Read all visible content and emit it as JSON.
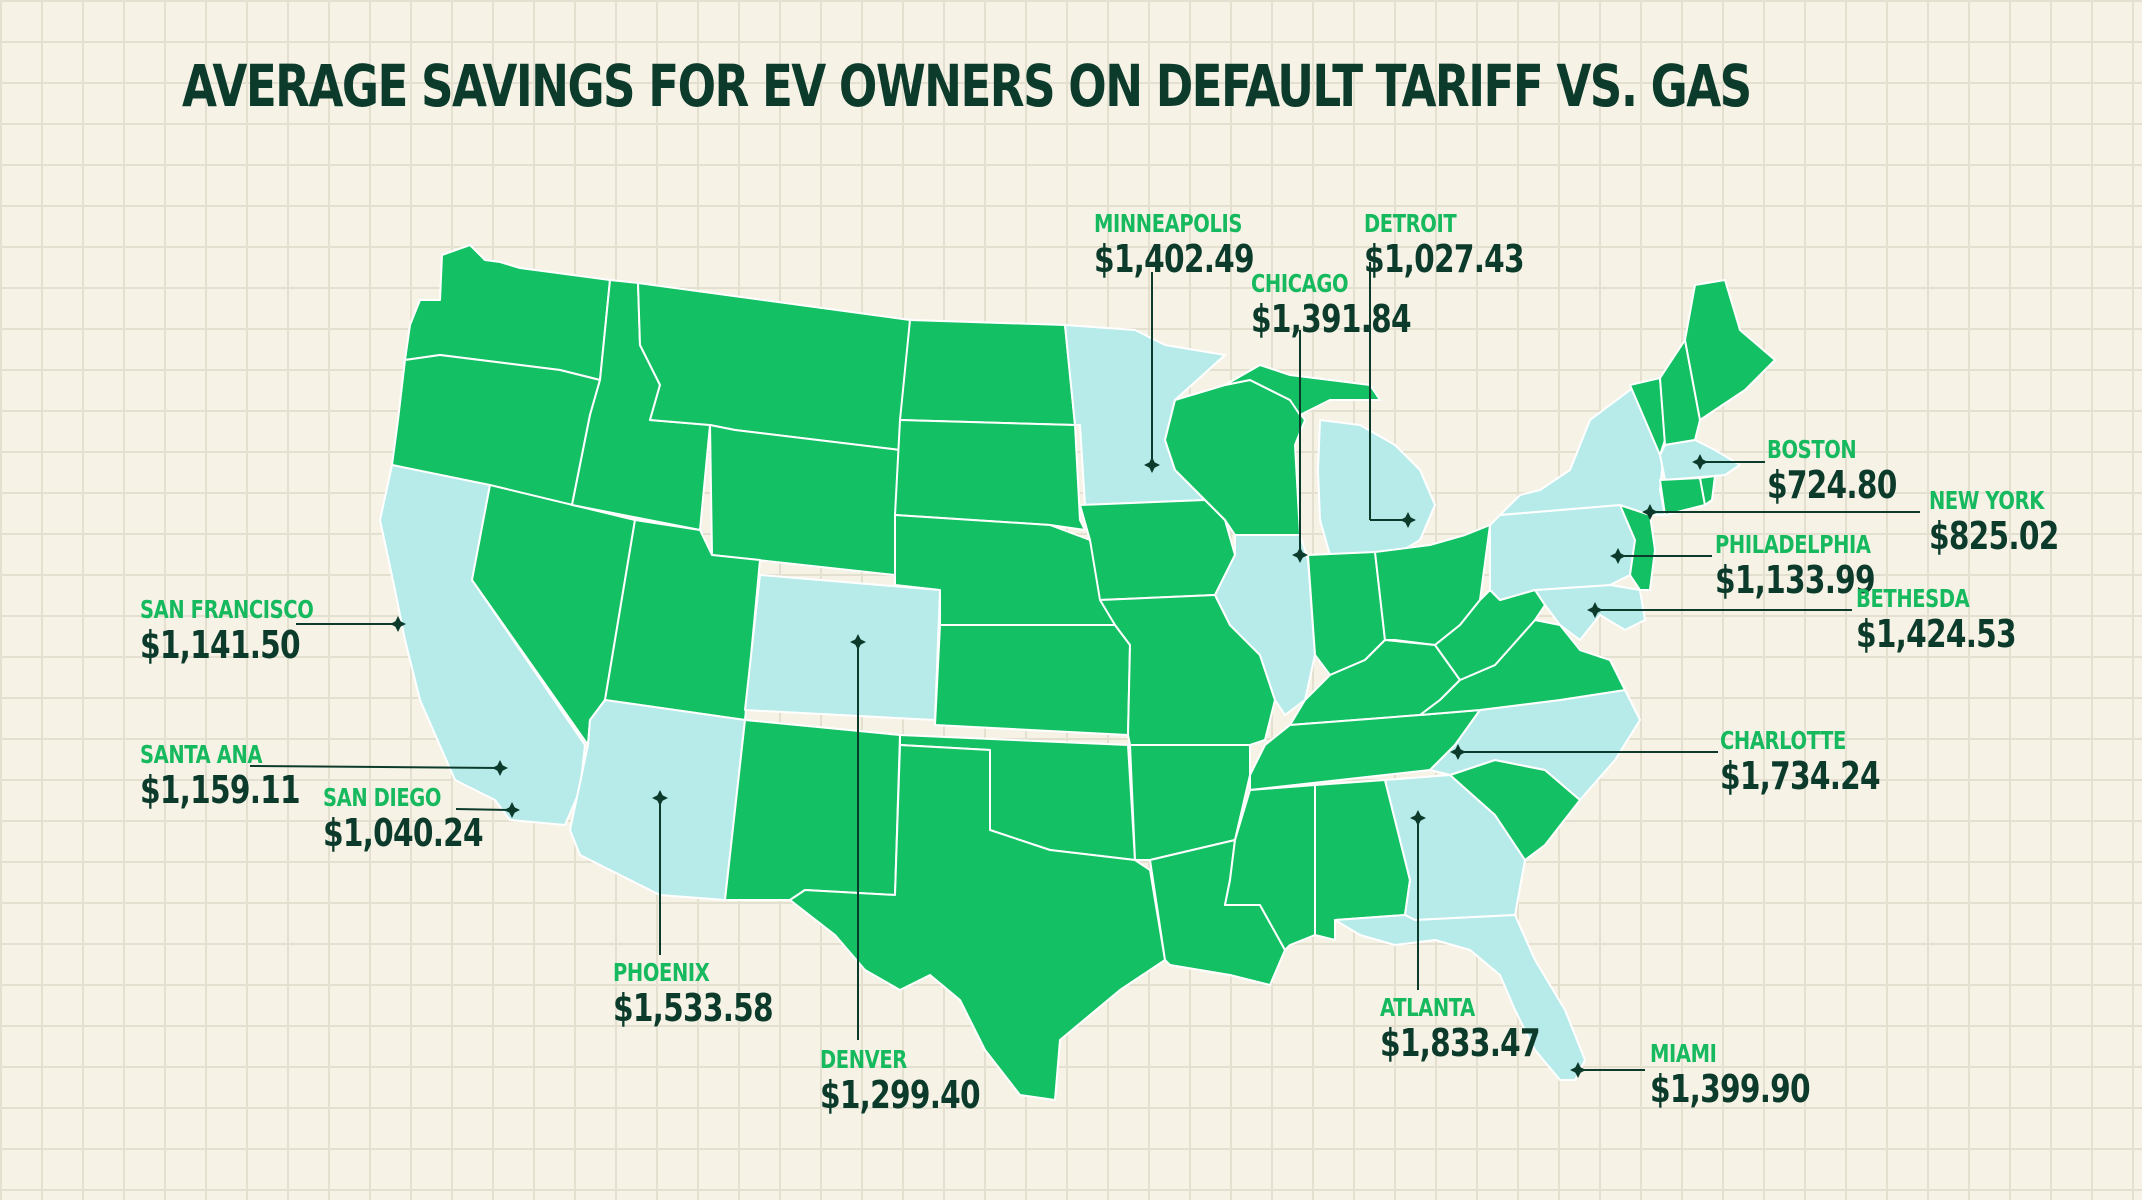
{
  "title": "AVERAGE SAVINGS FOR EV OWNERS ON DEFAULT TARIFF VS. GAS",
  "colors": {
    "background": "#f6f3e6",
    "grid": "#e4e0d0",
    "state_default": "#14c064",
    "state_highlighted": "#b6ebea",
    "city_text": "#16b95e",
    "amount_text": "#0c3b2c"
  },
  "cities": [
    {
      "id": "minneapolis",
      "name": "MINNEAPOLIS",
      "amount": "$1,402.49"
    },
    {
      "id": "detroit",
      "name": "DETROIT",
      "amount": "$1,027.43"
    },
    {
      "id": "chicago",
      "name": "CHICAGO",
      "amount": "$1,391.84"
    },
    {
      "id": "boston",
      "name": "BOSTON",
      "amount": "$724.80"
    },
    {
      "id": "new-york",
      "name": "NEW YORK",
      "amount": "$825.02"
    },
    {
      "id": "philadelphia",
      "name": "PHILADELPHIA",
      "amount": "$1,133.99"
    },
    {
      "id": "bethesda",
      "name": "BETHESDA",
      "amount": "$1,424.53"
    },
    {
      "id": "san-francisco",
      "name": "SAN FRANCISCO",
      "amount": "$1,141.50"
    },
    {
      "id": "santa-ana",
      "name": "SANTA ANA",
      "amount": "$1,159.11"
    },
    {
      "id": "san-diego",
      "name": "SAN DIEGO",
      "amount": "$1,040.24"
    },
    {
      "id": "charlotte",
      "name": "CHARLOTTE",
      "amount": "$1,734.24"
    },
    {
      "id": "phoenix",
      "name": "PHOENIX",
      "amount": "$1,533.58"
    },
    {
      "id": "atlanta",
      "name": "ATLANTA",
      "amount": "$1,833.47"
    },
    {
      "id": "denver",
      "name": "DENVER",
      "amount": "$1,299.40"
    },
    {
      "id": "miami",
      "name": "MIAMI",
      "amount": "$1,399.90"
    }
  ],
  "highlighted_states": [
    "Washington-none",
    "California",
    "Arizona",
    "Colorado",
    "Minnesota",
    "Illinois",
    "Michigan",
    "Georgia",
    "Florida",
    "North Carolina",
    "New York",
    "Pennsylvania",
    "Massachusetts",
    "Maryland"
  ]
}
